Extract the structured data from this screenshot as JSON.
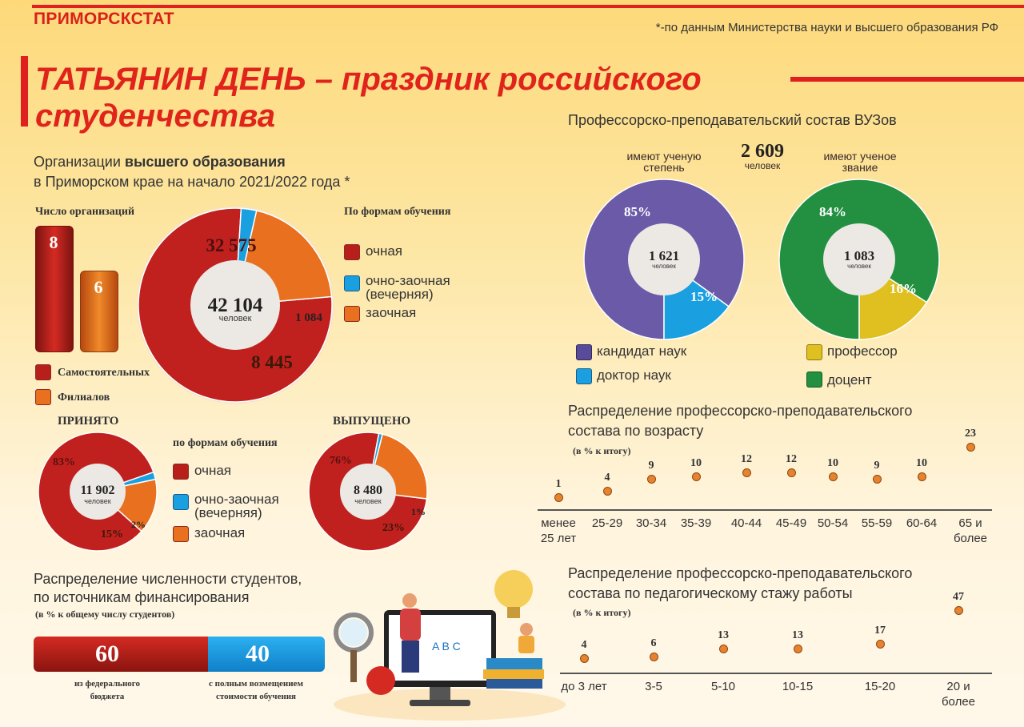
{
  "header": {
    "brand": "ПРИМОРСКСТАТ",
    "source_note": "*-по данным Министерства науки и высшего образования РФ",
    "title_line1": "ТАТЬЯНИН ДЕНЬ – праздник российского",
    "title_line2": "студенчества"
  },
  "colors": {
    "ochnaya": "#c0201e",
    "ochno_zaochnaya": "#1aa0e0",
    "zaochnaya": "#e8701e",
    "kandidat": "#6a5aa8",
    "doktor": "#1aa0e0",
    "professor": "#e0c020",
    "docent": "#229040"
  },
  "orgs": {
    "heading_pre": "Организации ",
    "heading_bold": "высшего образования",
    "heading_line2": "в Приморском крае на начало 2021/2022 года *",
    "count_label": "Число организаций",
    "independent_value": "8",
    "branches_value": "6",
    "legend_independent": "Самостоятельных",
    "legend_branches": "Филиалов",
    "forms_label": "По формам обучения",
    "legend": [
      "очная",
      "очно-заочная (вечерняя)",
      "заочная"
    ]
  },
  "intake": {
    "title": "ПРИНЯТО",
    "forms_label": "по формам обучения",
    "center_value": "11 902",
    "center_unit": "человек",
    "legend": [
      "очная",
      "очно-заочная (вечерняя)",
      "заочная"
    ]
  },
  "graduated": {
    "title": "ВЫПУЩЕНО",
    "center_value": "8 480",
    "center_unit": "человек"
  },
  "funding": {
    "heading_line1": "Распределение численности студентов,",
    "heading_line2": "по источникам финансирования",
    "note": "(в % к общему числу студентов)",
    "federal_value": "60",
    "federal_label": "из федерального бюджета",
    "paid_value": "40",
    "paid_label": "с полным возмещением стоимости обучения"
  },
  "staff": {
    "heading": "Профессорско-преподавательский состав ВУЗов",
    "total_value": "2 609",
    "total_unit": "человек",
    "degree_label": "имеют ученую степень",
    "title_label": "имеют ученое звание",
    "degree_center": "1 621",
    "title_center": "1 083",
    "center_unit": "человек",
    "legend_kandidat": "кандидат наук",
    "legend_doktor": "доктор наук",
    "legend_professor": "профессор",
    "legend_docent": "доцент"
  },
  "age_section": {
    "heading_line1": "Распределение профессорско-преподавательского",
    "heading_line2": "состава по возрасту",
    "note": "(в % к итогу)"
  },
  "exp_section": {
    "heading_line1": "Распределение профессорско-преподавательского",
    "heading_line2": "состава по педагогическому стажу работы",
    "note": "(в % к итогу)"
  },
  "chart_data": [
    {
      "type": "pie",
      "id": "students_by_form",
      "center_value": "42 104",
      "center_unit": "человек",
      "categories": [
        "очная",
        "очно-заочная (вечерняя)",
        "заочная"
      ],
      "values": [
        32575,
        1084,
        8445
      ],
      "labels": [
        "32 575",
        "1 084",
        "8 445"
      ]
    },
    {
      "type": "bar",
      "id": "organizations",
      "categories": [
        "Самостоятельных",
        "Филиалов"
      ],
      "values": [
        8,
        6
      ]
    },
    {
      "type": "pie",
      "id": "intake_by_form",
      "center_value": "11 902",
      "categories": [
        "очная",
        "очно-заочная (вечерняя)",
        "заочная"
      ],
      "values": [
        83,
        2,
        15
      ],
      "labels": [
        "83%",
        "2%",
        "15%"
      ]
    },
    {
      "type": "pie",
      "id": "graduated_by_form",
      "center_value": "8 480",
      "categories": [
        "очная",
        "очно-заочная (вечерняя)",
        "заочная"
      ],
      "values": [
        76,
        1,
        23
      ],
      "labels": [
        "76%",
        "1%",
        "23%"
      ]
    },
    {
      "type": "bar",
      "id": "funding",
      "categories": [
        "из федерального бюджета",
        "с полным возмещением стоимости обучения"
      ],
      "values": [
        60,
        40
      ]
    },
    {
      "type": "pie",
      "id": "degree",
      "center_value": "1 621",
      "categories": [
        "кандидат наук",
        "доктор наук"
      ],
      "values": [
        85,
        15
      ],
      "labels": [
        "85%",
        "15%"
      ]
    },
    {
      "type": "pie",
      "id": "academic_title",
      "center_value": "1 083",
      "categories": [
        "доцент",
        "профессор"
      ],
      "values": [
        84,
        16
      ],
      "labels": [
        "84%",
        "16%"
      ]
    },
    {
      "type": "scatter",
      "id": "age",
      "categories": [
        "менее 25 лет",
        "25-29",
        "30-34",
        "35-39",
        "40-44",
        "45-49",
        "50-54",
        "55-59",
        "60-64",
        "65 и более"
      ],
      "values": [
        1,
        4,
        9,
        10,
        12,
        12,
        10,
        9,
        10,
        23
      ]
    },
    {
      "type": "scatter",
      "id": "experience",
      "categories": [
        "до 3 лет",
        "3-5",
        "5-10",
        "10-15",
        "15-20",
        "20 и более"
      ],
      "values": [
        4,
        6,
        13,
        13,
        17,
        47
      ]
    }
  ]
}
